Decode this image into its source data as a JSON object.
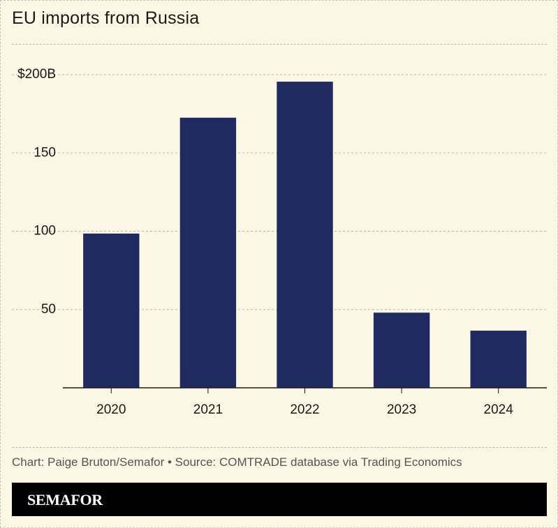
{
  "header": {
    "title": "EU imports from Russia"
  },
  "footer": {
    "credit": "Chart: Paige Bruton/Semafor • Source: COMTRADE database via Trading Economics",
    "brand": "SEMAFOR"
  },
  "colors": {
    "bar": "#1f2a60",
    "background": "#fbf7e4",
    "grid": "#bdb9a8"
  },
  "chart_data": {
    "type": "bar",
    "title": "EU imports from Russia",
    "xlabel": "",
    "ylabel": "",
    "categories": [
      "2020",
      "2021",
      "2022",
      "2023",
      "2024"
    ],
    "values": [
      98.5,
      172.5,
      195.5,
      48,
      36.5
    ],
    "ylim": [
      0,
      200
    ],
    "yticks": [
      {
        "value": 50,
        "label": "50"
      },
      {
        "value": 100,
        "label": "100"
      },
      {
        "value": 150,
        "label": "150"
      },
      {
        "value": 200,
        "label": "$200B"
      }
    ],
    "grid": true,
    "legend": "none"
  }
}
